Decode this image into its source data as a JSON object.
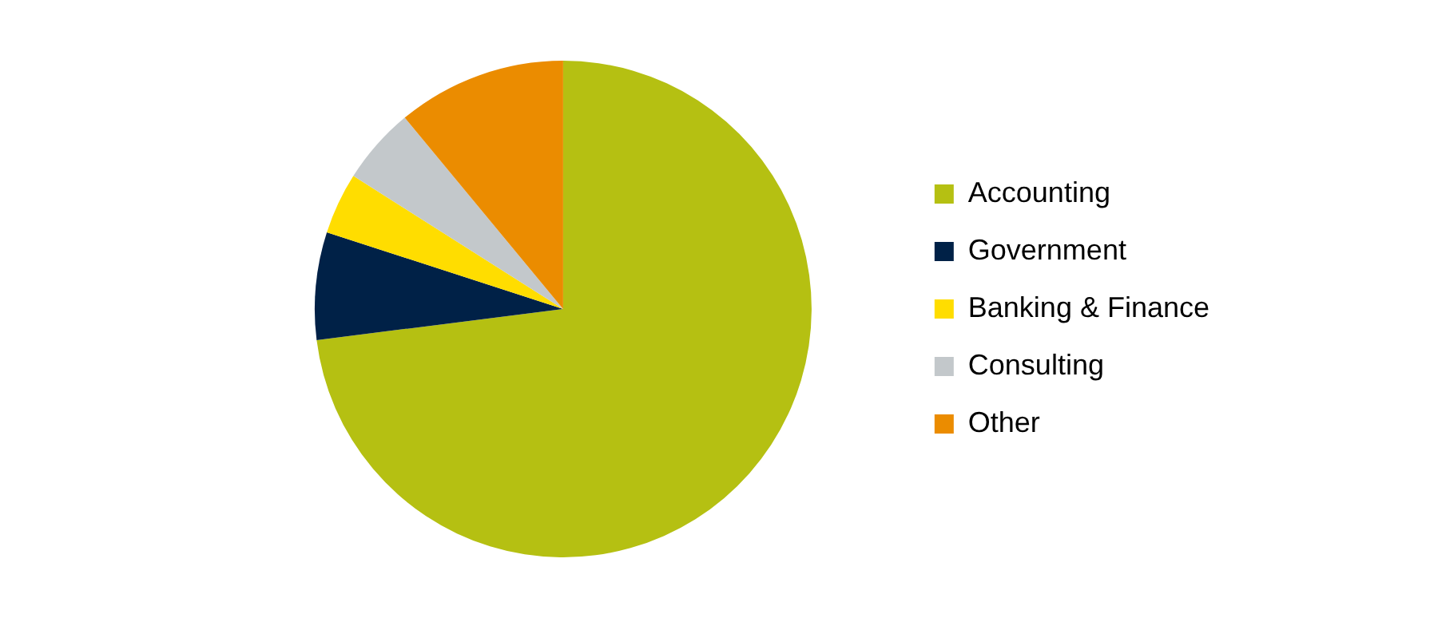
{
  "chart_data": {
    "type": "pie",
    "categories": [
      "Accounting",
      "Government",
      "Banking & Finance",
      "Consulting",
      "Other"
    ],
    "values": [
      73,
      7,
      4,
      5,
      11
    ],
    "colors": [
      "#b5c012",
      "#002147",
      "#ffdd00",
      "#c3c8cb",
      "#eb8c00"
    ],
    "legend": "right"
  }
}
